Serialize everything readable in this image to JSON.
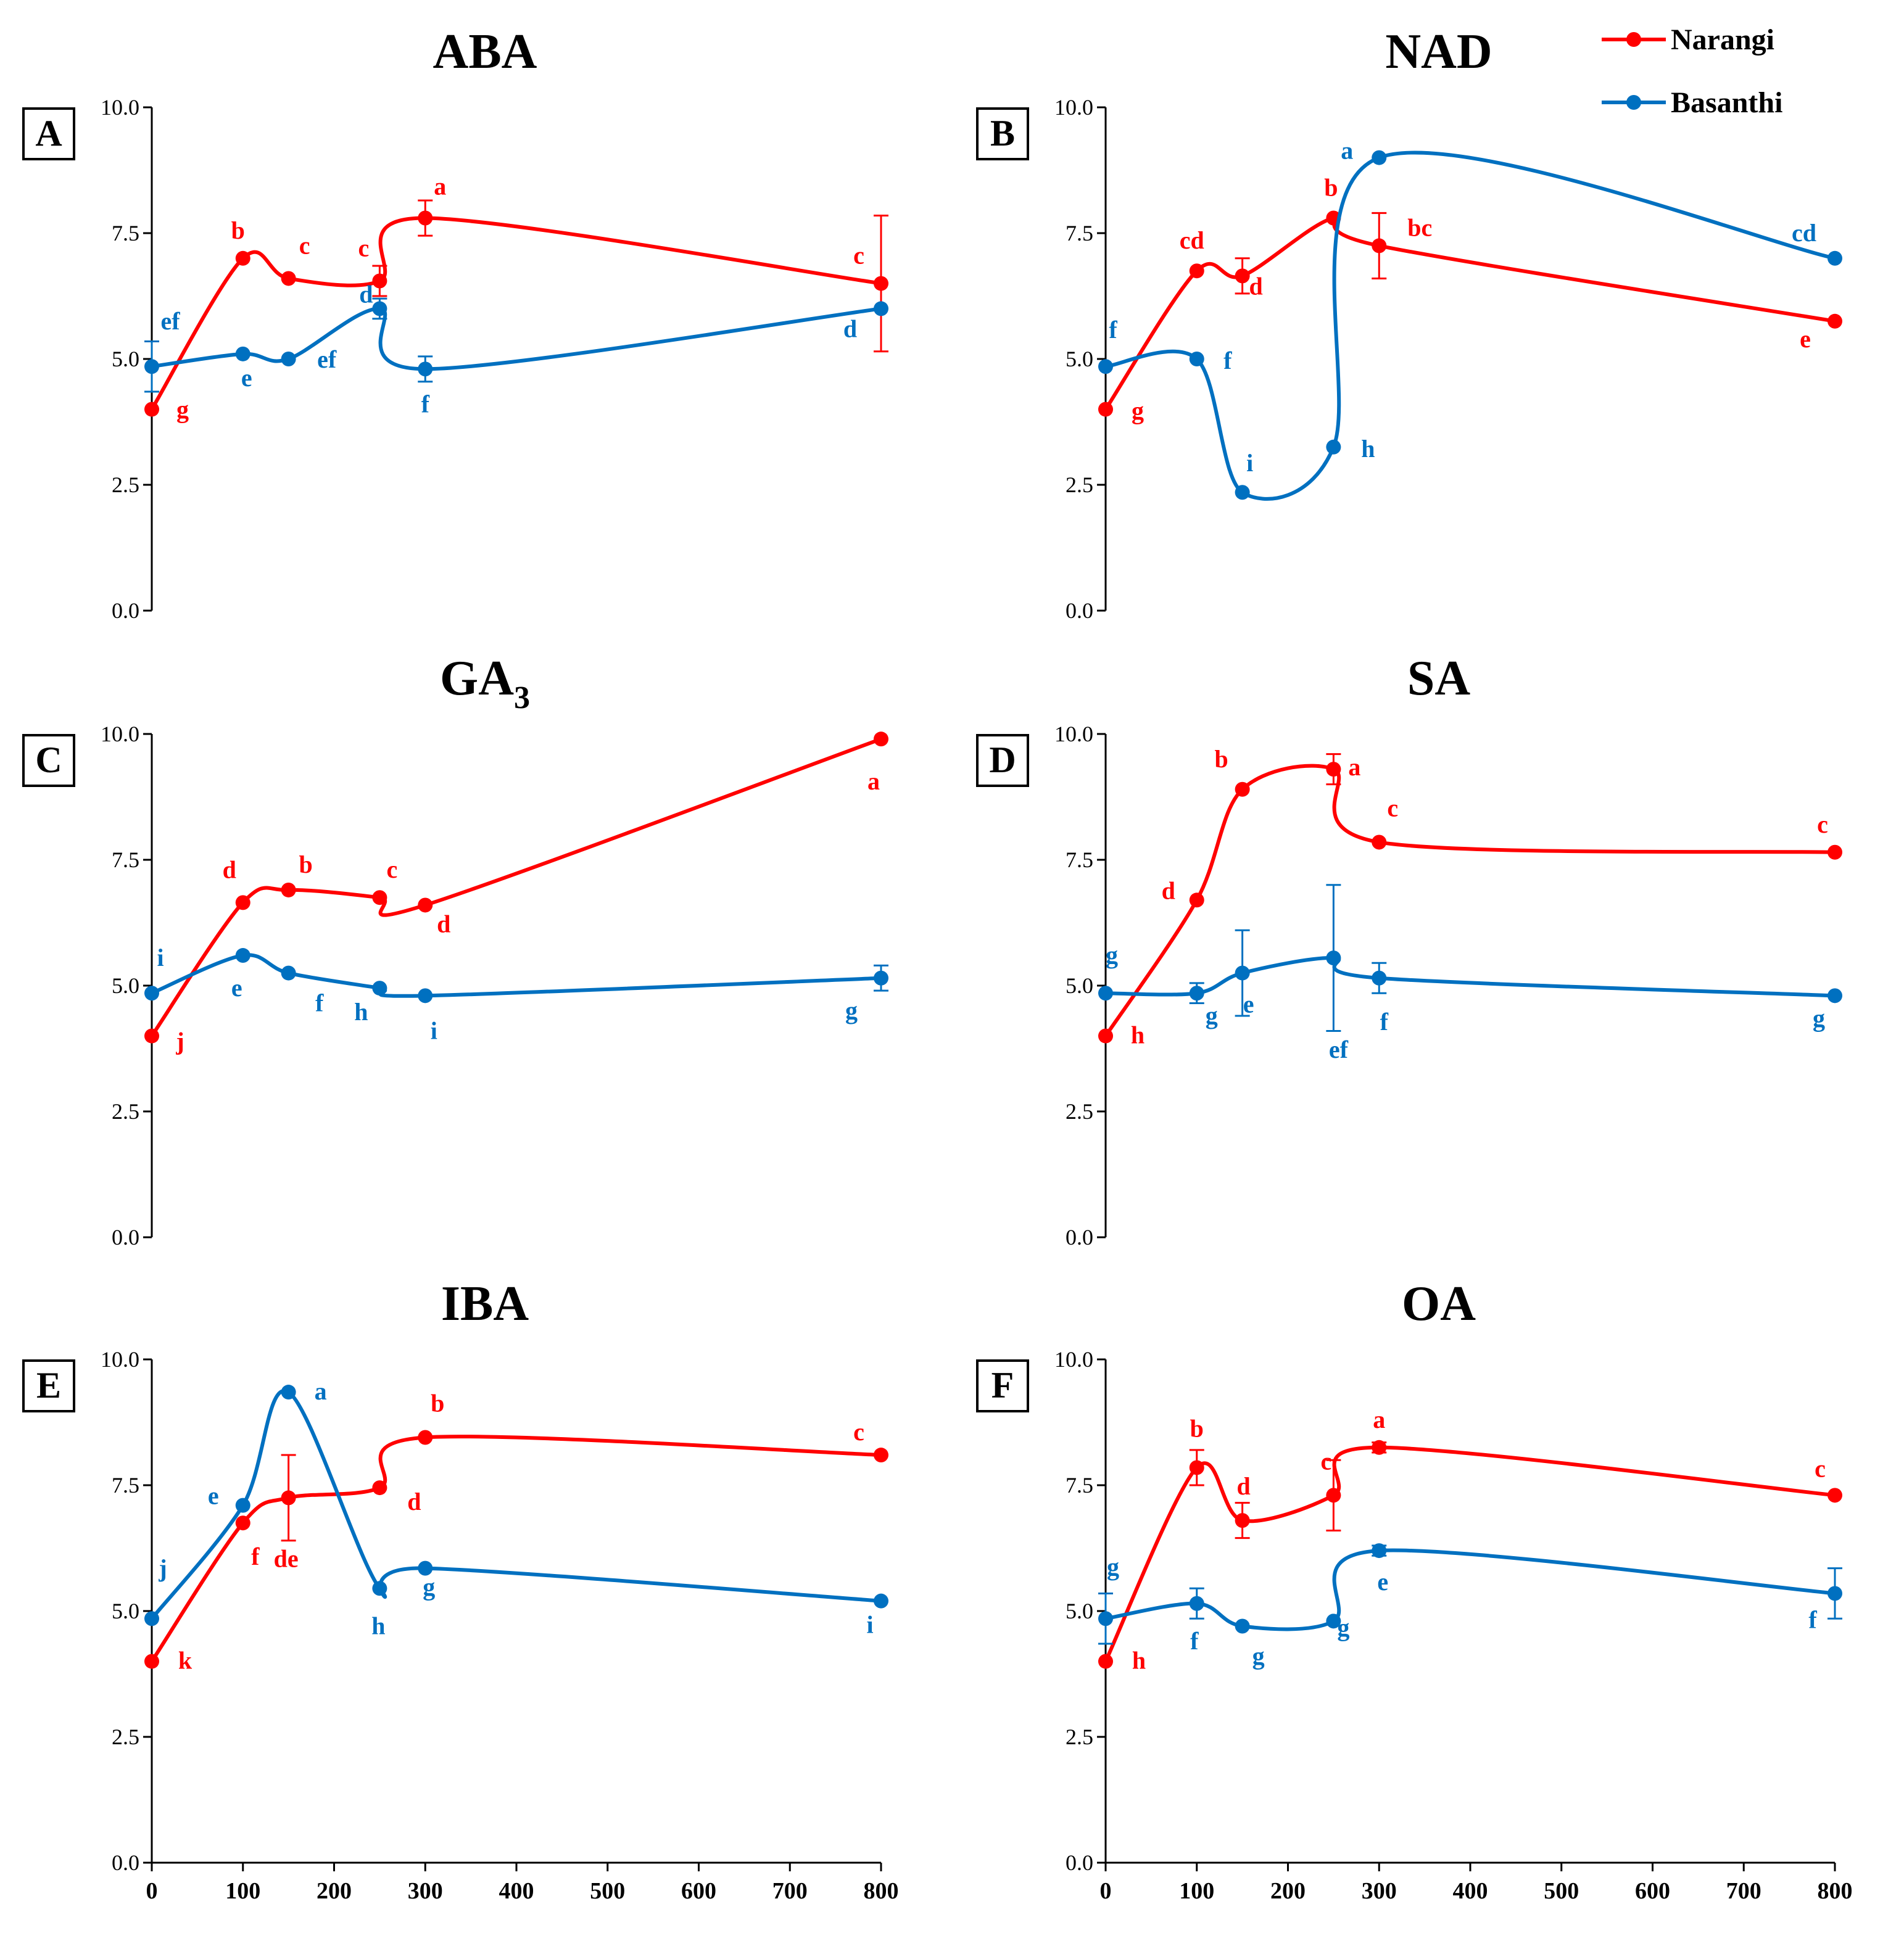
{
  "figure": {
    "legend": {
      "entries": [
        {
          "label": "Narangi",
          "color": "#ff0000"
        },
        {
          "label": "Basanthi",
          "color": "#0070c0"
        }
      ]
    },
    "colors": {
      "narangi": "#ff0000",
      "basanthi": "#0070c0",
      "axis": "#000000"
    }
  },
  "chart_data": [
    {
      "type": "line",
      "panel_label": "A",
      "title": "ABA",
      "ylim": [
        0,
        10
      ],
      "yticks": [
        "0.0",
        "2.5",
        "5.0",
        "7.5",
        "10.0"
      ],
      "xlim": [
        0,
        800
      ],
      "series": [
        {
          "name": "Narangi",
          "points": [
            {
              "x": 0,
              "y": 4.0,
              "letter": "g"
            },
            {
              "x": 100,
              "y": 7.0,
              "letter": "b"
            },
            {
              "x": 150,
              "y": 6.6,
              "letter": "c"
            },
            {
              "x": 250,
              "y": 6.55,
              "err": 0.3,
              "letter": "c"
            },
            {
              "x": 300,
              "y": 7.8,
              "err": 0.35,
              "letter": "a"
            },
            {
              "x": 800,
              "y": 6.5,
              "err": 1.35,
              "letter": "c"
            }
          ]
        },
        {
          "name": "Basanthi",
          "points": [
            {
              "x": 0,
              "y": 4.85,
              "err": 0.5,
              "letter": "ef"
            },
            {
              "x": 100,
              "y": 5.1,
              "letter": "e"
            },
            {
              "x": 150,
              "y": 5.0,
              "letter": "ef"
            },
            {
              "x": 250,
              "y": 6.0,
              "err": 0.2,
              "letter": "d"
            },
            {
              "x": 300,
              "y": 4.8,
              "err": 0.25,
              "letter": "f"
            },
            {
              "x": 800,
              "y": 6.0,
              "letter": "d"
            }
          ]
        }
      ]
    },
    {
      "type": "line",
      "panel_label": "B",
      "title": "NAD",
      "ylim": [
        0,
        10
      ],
      "yticks": [
        "0.0",
        "2.5",
        "5.0",
        "7.5",
        "10.0"
      ],
      "xlim": [
        0,
        800
      ],
      "series": [
        {
          "name": "Narangi",
          "points": [
            {
              "x": 0,
              "y": 4.0,
              "letter": "g"
            },
            {
              "x": 100,
              "y": 6.75,
              "letter": "cd"
            },
            {
              "x": 150,
              "y": 6.65,
              "err": 0.35,
              "letter": "d"
            },
            {
              "x": 250,
              "y": 7.8,
              "letter": "b"
            },
            {
              "x": 300,
              "y": 7.25,
              "err": 0.65,
              "letter": "bc"
            },
            {
              "x": 800,
              "y": 5.75,
              "letter": "e"
            }
          ]
        },
        {
          "name": "Basanthi",
          "points": [
            {
              "x": 0,
              "y": 4.85,
              "letter": "f"
            },
            {
              "x": 100,
              "y": 5.0,
              "letter": "f"
            },
            {
              "x": 150,
              "y": 2.35,
              "letter": "i"
            },
            {
              "x": 250,
              "y": 3.25,
              "letter": "h"
            },
            {
              "x": 300,
              "y": 9.0,
              "letter": "a"
            },
            {
              "x": 800,
              "y": 7.0,
              "letter": "cd"
            }
          ]
        }
      ]
    },
    {
      "type": "line",
      "panel_label": "C",
      "title": "GA",
      "title_subscript": "3",
      "ylim": [
        0,
        10
      ],
      "yticks": [
        "0.0",
        "2.5",
        "5.0",
        "7.5",
        "10.0"
      ],
      "xlim": [
        0,
        800
      ],
      "series": [
        {
          "name": "Narangi",
          "points": [
            {
              "x": 0,
              "y": 4.0,
              "letter": "j"
            },
            {
              "x": 100,
              "y": 6.65,
              "letter": "d"
            },
            {
              "x": 150,
              "y": 6.9,
              "letter": "b"
            },
            {
              "x": 250,
              "y": 6.75,
              "letter": "c"
            },
            {
              "x": 300,
              "y": 6.6,
              "letter": "d"
            },
            {
              "x": 800,
              "y": 9.9,
              "letter": "a"
            }
          ]
        },
        {
          "name": "Basanthi",
          "points": [
            {
              "x": 0,
              "y": 4.85,
              "letter": "i"
            },
            {
              "x": 100,
              "y": 5.6,
              "letter": "e"
            },
            {
              "x": 150,
              "y": 5.25,
              "letter": "f"
            },
            {
              "x": 250,
              "y": 4.95,
              "letter": "h"
            },
            {
              "x": 300,
              "y": 4.8,
              "letter": "i"
            },
            {
              "x": 800,
              "y": 5.15,
              "err": 0.25,
              "letter": "g"
            }
          ]
        }
      ]
    },
    {
      "type": "line",
      "panel_label": "D",
      "title": "SA",
      "ylim": [
        0,
        10
      ],
      "yticks": [
        "0.0",
        "2.5",
        "5.0",
        "7.5",
        "10.0"
      ],
      "xlim": [
        0,
        800
      ],
      "series": [
        {
          "name": "Narangi",
          "points": [
            {
              "x": 0,
              "y": 4.0,
              "letter": "h"
            },
            {
              "x": 100,
              "y": 6.7,
              "letter": "d"
            },
            {
              "x": 150,
              "y": 8.9,
              "letter": "b"
            },
            {
              "x": 250,
              "y": 9.3,
              "err": 0.3,
              "letter": "a"
            },
            {
              "x": 300,
              "y": 7.85,
              "letter": "c"
            },
            {
              "x": 800,
              "y": 7.65,
              "letter": "c"
            }
          ]
        },
        {
          "name": "Basanthi",
          "points": [
            {
              "x": 0,
              "y": 4.85,
              "letter": "g"
            },
            {
              "x": 100,
              "y": 4.85,
              "err": 0.2,
              "letter": "g"
            },
            {
              "x": 150,
              "y": 5.25,
              "err": 0.85,
              "letter": "e"
            },
            {
              "x": 250,
              "y": 5.55,
              "err": 1.45,
              "letter": "ef"
            },
            {
              "x": 300,
              "y": 5.15,
              "err": 0.3,
              "letter": "f"
            },
            {
              "x": 800,
              "y": 4.8,
              "letter": "g"
            }
          ]
        }
      ]
    },
    {
      "type": "line",
      "panel_label": "E",
      "title": "IBA",
      "ylim": [
        0,
        10
      ],
      "yticks": [
        "0.0",
        "2.5",
        "5.0",
        "7.5",
        "10.0"
      ],
      "xlim": [
        0,
        800
      ],
      "xticks": [
        "0",
        "100",
        "200",
        "300",
        "400",
        "500",
        "600",
        "700",
        "800"
      ],
      "series": [
        {
          "name": "Narangi",
          "points": [
            {
              "x": 0,
              "y": 4.0,
              "letter": "k"
            },
            {
              "x": 100,
              "y": 6.75,
              "letter": "f"
            },
            {
              "x": 150,
              "y": 7.25,
              "err": 0.85,
              "letter": "de"
            },
            {
              "x": 250,
              "y": 7.45,
              "letter": "d"
            },
            {
              "x": 300,
              "y": 8.45,
              "letter": "b"
            },
            {
              "x": 800,
              "y": 8.1,
              "letter": "c"
            }
          ]
        },
        {
          "name": "Basanthi",
          "points": [
            {
              "x": 0,
              "y": 4.85,
              "letter": "j"
            },
            {
              "x": 100,
              "y": 7.1,
              "letter": "e"
            },
            {
              "x": 150,
              "y": 9.35,
              "letter": "a"
            },
            {
              "x": 250,
              "y": 5.45,
              "letter": "h"
            },
            {
              "x": 300,
              "y": 5.85,
              "letter": "g"
            },
            {
              "x": 800,
              "y": 5.2,
              "letter": "i"
            }
          ]
        }
      ]
    },
    {
      "type": "line",
      "panel_label": "F",
      "title": "OA",
      "ylim": [
        0,
        10
      ],
      "yticks": [
        "0.0",
        "2.5",
        "5.0",
        "7.5",
        "10.0"
      ],
      "xlim": [
        0,
        800
      ],
      "xticks": [
        "0",
        "100",
        "200",
        "300",
        "400",
        "500",
        "600",
        "700",
        "800"
      ],
      "series": [
        {
          "name": "Narangi",
          "points": [
            {
              "x": 0,
              "y": 4.0,
              "letter": "h"
            },
            {
              "x": 100,
              "y": 7.85,
              "err": 0.35,
              "letter": "b"
            },
            {
              "x": 150,
              "y": 6.8,
              "err": 0.35,
              "letter": "d"
            },
            {
              "x": 250,
              "y": 7.3,
              "err": 0.7,
              "letter": "c"
            },
            {
              "x": 300,
              "y": 8.25,
              "err": 0.1,
              "letter": "a"
            },
            {
              "x": 800,
              "y": 7.3,
              "letter": "c"
            }
          ]
        },
        {
          "name": "Basanthi",
          "points": [
            {
              "x": 0,
              "y": 4.85,
              "err": 0.5,
              "letter": "g"
            },
            {
              "x": 100,
              "y": 5.15,
              "err": 0.3,
              "letter": "f"
            },
            {
              "x": 150,
              "y": 4.7,
              "letter": "g"
            },
            {
              "x": 250,
              "y": 4.8,
              "letter": "g"
            },
            {
              "x": 300,
              "y": 6.2,
              "err": 0.1,
              "letter": "e"
            },
            {
              "x": 800,
              "y": 5.35,
              "err": 0.5,
              "letter": "f"
            }
          ]
        }
      ]
    }
  ]
}
